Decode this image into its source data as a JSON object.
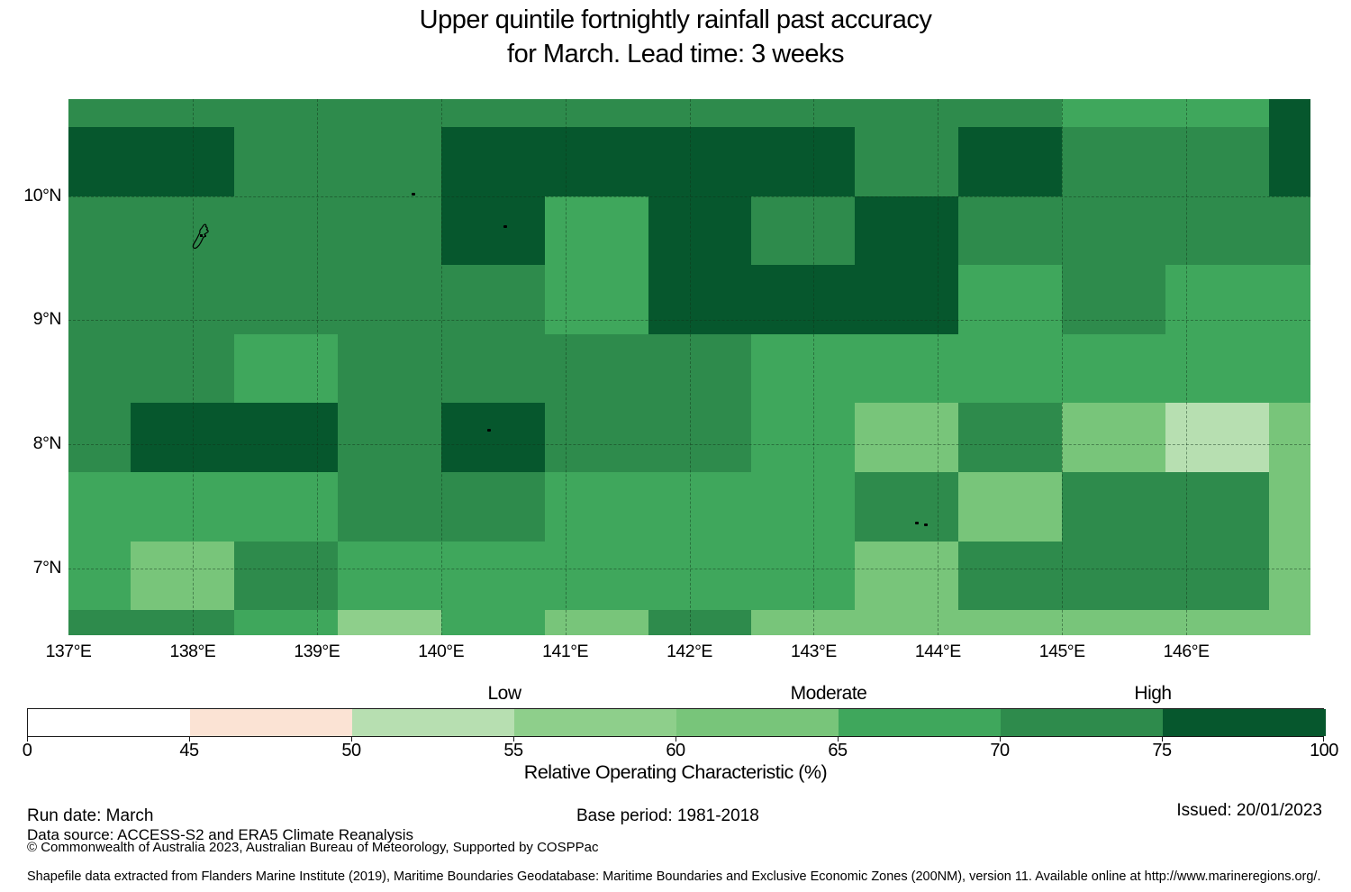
{
  "title": {
    "line1": "Upper quintile fortnightly rainfall past accuracy",
    "line2": "for March. Lead time: 3 weeks"
  },
  "chart_data": {
    "type": "heatmap",
    "title": "Upper quintile fortnightly rainfall past accuracy for March. Lead time: 3 weeks",
    "x_axis": {
      "ticks": [
        "137°E",
        "138°E",
        "139°E",
        "140°E",
        "141°E",
        "142°E",
        "143°E",
        "144°E",
        "145°E",
        "146°E"
      ],
      "tick_values": [
        137,
        138,
        139,
        140,
        141,
        142,
        143,
        144,
        145,
        146
      ],
      "range": [
        137,
        147
      ]
    },
    "y_axis": {
      "ticks": [
        "10°N",
        "9°N",
        "8°N",
        "7°N"
      ],
      "tick_values": [
        10,
        9,
        8,
        7
      ],
      "range": [
        6.464,
        10.781
      ]
    },
    "lon_edges": [
      137,
      137.5,
      138.333,
      139.167,
      140,
      140.833,
      141.667,
      142.5,
      143.333,
      144.167,
      145,
      145.833,
      146.667,
      147
    ],
    "lat_edges": [
      10.781,
      10.556,
      10.0,
      9.444,
      8.889,
      8.333,
      7.778,
      7.222,
      6.667,
      6.464
    ],
    "bins": [
      {
        "label": "0-45",
        "color": "#ffffff"
      },
      {
        "label": "45-50",
        "color": "#fbe3d4"
      },
      {
        "label": "50-55",
        "color": "#b7dfb1"
      },
      {
        "label": "55-60",
        "color": "#8ecf8b"
      },
      {
        "label": "60-65",
        "color": "#78c57a"
      },
      {
        "label": "65-70",
        "color": "#3fa75c"
      },
      {
        "label": "70-75",
        "color": "#2e8b4c"
      },
      {
        "label": "75-100",
        "color": "#06572d"
      }
    ],
    "grid": [
      [
        6,
        6,
        6,
        6,
        6,
        6,
        6,
        6,
        6,
        6,
        5,
        5,
        7
      ],
      [
        7,
        7,
        6,
        6,
        7,
        7,
        7,
        7,
        6,
        7,
        6,
        6,
        7
      ],
      [
        6,
        6,
        6,
        6,
        7,
        5,
        7,
        6,
        7,
        6,
        6,
        6,
        6
      ],
      [
        6,
        6,
        6,
        6,
        6,
        5,
        7,
        7,
        7,
        5,
        6,
        5,
        5
      ],
      [
        6,
        6,
        5,
        6,
        6,
        6,
        6,
        5,
        5,
        5,
        5,
        5,
        5
      ],
      [
        6,
        7,
        7,
        6,
        7,
        6,
        6,
        5,
        4,
        6,
        4,
        2,
        4
      ],
      [
        5,
        5,
        5,
        6,
        6,
        5,
        5,
        5,
        6,
        4,
        6,
        6,
        4
      ],
      [
        5,
        4,
        6,
        5,
        5,
        5,
        5,
        5,
        4,
        6,
        6,
        6,
        4
      ],
      [
        6,
        6,
        5,
        3,
        5,
        4,
        6,
        4,
        4,
        4,
        4,
        4,
        4
      ]
    ],
    "gridlines": {
      "lon": [
        138,
        139,
        140,
        141,
        142,
        143,
        144,
        145,
        146
      ],
      "lat": [
        7,
        8,
        9,
        10
      ]
    },
    "islands": [
      {
        "name": "yap-island",
        "type": "outline",
        "lon": 138.06,
        "lat": 9.64
      },
      {
        "name": "ulithi-island",
        "type": "dot",
        "lon": 139.78,
        "lat": 10.02
      },
      {
        "name": "fais-island",
        "type": "dot",
        "lon": 140.52,
        "lat": 9.76
      },
      {
        "name": "sorol-island",
        "type": "dot",
        "lon": 140.39,
        "lat": 8.12
      },
      {
        "name": "woleai-island",
        "type": "dot",
        "lon": 143.83,
        "lat": 7.37
      },
      {
        "name": "woleai-east-island",
        "type": "dot",
        "lon": 143.9,
        "lat": 7.36
      }
    ]
  },
  "colorbar": {
    "ticks": [
      "0",
      "45",
      "50",
      "55",
      "60",
      "65",
      "70",
      "75",
      "100"
    ],
    "class_labels": [
      {
        "text": "Low",
        "tick": "55"
      },
      {
        "text": "Moderate",
        "tick": "65"
      },
      {
        "text": "High",
        "tick": "75"
      }
    ],
    "axis_label": "Relative Operating Characteristic (%)"
  },
  "footer": {
    "run_date": "Run date: March",
    "base_period": "Base period: 1981-2018",
    "issued": "Issued: 20/01/2023",
    "data_source": "Data source: ACCESS-S2 and ERA5 Climate Reanalysis",
    "copyright": "© Commonwealth of Australia 2023, Australian Bureau of Meteorology, Supported by COSPPac",
    "shapefile_note": "Shapefile data extracted from Flanders Marine Institute (2019), Maritime Boundaries Geodatabase: Maritime Boundaries and Exclusive Economic Zones (200NM), version 11. Available online at http://www.marineregions.org/."
  }
}
